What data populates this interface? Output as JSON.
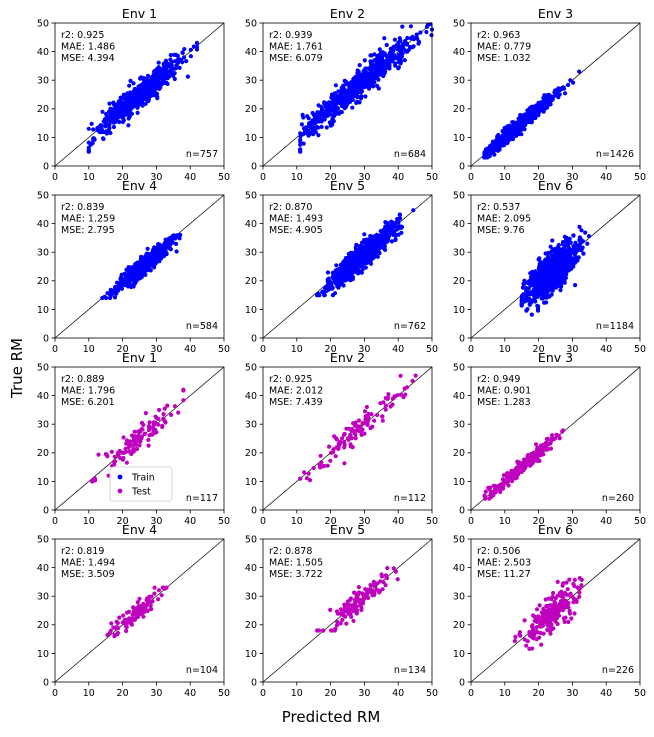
{
  "figure": {
    "xlabel": "Predicted RM",
    "ylabel": "True RM",
    "legend": {
      "placement": "lower-left",
      "subplot": 6,
      "entries": [
        "Train",
        "Test"
      ]
    },
    "colors": {
      "Train": "#0000ff",
      "Test": "#bf00bf",
      "identity_line": "#000000"
    }
  },
  "chart_data": [
    {
      "type": "scatter",
      "title": "Env 1",
      "series": "Train",
      "n_label": "n=757",
      "stats": [
        "r2: 0.925",
        "MAE: 1.486",
        "MSE: 4.394"
      ],
      "xlim": [
        0,
        50
      ],
      "ylim": [
        0,
        50
      ],
      "ticks": [
        0,
        10,
        20,
        30,
        40,
        50
      ],
      "center": [
        25,
        25
      ],
      "spread": [
        6,
        6
      ],
      "noise": 2.1,
      "n": 757,
      "color": "#0000ff",
      "xr": [
        10,
        42
      ],
      "yr": [
        5,
        43
      ]
    },
    {
      "type": "scatter",
      "title": "Env 2",
      "series": "Train",
      "n_label": "n=684",
      "stats": [
        "r2: 0.939",
        "MAE: 1.761",
        "MSE: 6.079"
      ],
      "xlim": [
        0,
        50
      ],
      "ylim": [
        0,
        50
      ],
      "ticks": [
        0,
        10,
        20,
        30,
        40,
        50
      ],
      "center": [
        28,
        28
      ],
      "spread": [
        8,
        8
      ],
      "noise": 2.4,
      "n": 684,
      "color": "#0000ff",
      "xr": [
        11,
        50
      ],
      "yr": [
        5,
        50
      ]
    },
    {
      "type": "scatter",
      "title": "Env 3",
      "series": "Train",
      "n_label": "n=1426",
      "stats": [
        "r2: 0.963",
        "MAE: 0.779",
        "MSE: 1.032"
      ],
      "xlim": [
        0,
        50
      ],
      "ylim": [
        0,
        50
      ],
      "ticks": [
        0,
        10,
        20,
        30,
        40,
        50
      ],
      "center": [
        14,
        14
      ],
      "spread": [
        5,
        5
      ],
      "noise": 1.0,
      "n": 1426,
      "color": "#0000ff",
      "xr": [
        4,
        32
      ],
      "yr": [
        3,
        33
      ]
    },
    {
      "type": "scatter",
      "title": "Env 4",
      "series": "Train",
      "n_label": "n=584",
      "stats": [
        "r2: 0.839",
        "MAE: 1.259",
        "MSE: 2.795"
      ],
      "xlim": [
        0,
        50
      ],
      "ylim": [
        0,
        50
      ],
      "ticks": [
        0,
        10,
        20,
        30,
        40,
        50
      ],
      "center": [
        26,
        25
      ],
      "spread": [
        4,
        4
      ],
      "noise": 1.6,
      "n": 584,
      "color": "#0000ff",
      "xr": [
        14,
        37
      ],
      "yr": [
        14,
        36
      ]
    },
    {
      "type": "scatter",
      "title": "Env 5",
      "series": "Train",
      "n_label": "n=762",
      "stats": [
        "r2: 0.870",
        "MAE: 1.493",
        "MSE: 4.905"
      ],
      "xlim": [
        0,
        50
      ],
      "ylim": [
        0,
        50
      ],
      "ticks": [
        0,
        10,
        20,
        30,
        40,
        50
      ],
      "center": [
        29,
        28
      ],
      "spread": [
        5,
        5
      ],
      "noise": 2.1,
      "n": 762,
      "color": "#0000ff",
      "xr": [
        16,
        45
      ],
      "yr": [
        15,
        46
      ]
    },
    {
      "type": "scatter",
      "title": "Env 6",
      "series": "Train",
      "n_label": "n=1184",
      "stats": [
        "r2: 0.537",
        "MAE: 2.095",
        "MSE: 9.76"
      ],
      "xlim": [
        0,
        50
      ],
      "ylim": [
        0,
        50
      ],
      "ticks": [
        0,
        10,
        20,
        30,
        40,
        50
      ],
      "center": [
        24,
        23
      ],
      "spread": [
        3.5,
        4
      ],
      "noise": 3.0,
      "n": 1184,
      "color": "#0000ff",
      "xr": [
        15,
        36
      ],
      "yr": [
        5,
        50
      ]
    },
    {
      "type": "scatter",
      "title": "Env 1",
      "series": "Test",
      "n_label": "n=117",
      "stats": [
        "r2: 0.889",
        "MAE: 1.796",
        "MSE: 6.201"
      ],
      "xlim": [
        0,
        50
      ],
      "ylim": [
        0,
        50
      ],
      "ticks": [
        0,
        10,
        20,
        30,
        40,
        50
      ],
      "center": [
        24,
        24
      ],
      "spread": [
        6,
        6
      ],
      "noise": 2.3,
      "n": 117,
      "color": "#bf00bf",
      "xr": [
        11,
        38
      ],
      "yr": [
        10,
        42
      ]
    },
    {
      "type": "scatter",
      "title": "Env 2",
      "series": "Test",
      "n_label": "n=112",
      "stats": [
        "r2: 0.925",
        "MAE: 2.012",
        "MSE: 7.439"
      ],
      "xlim": [
        0,
        50
      ],
      "ylim": [
        0,
        50
      ],
      "ticks": [
        0,
        10,
        20,
        30,
        40,
        50
      ],
      "center": [
        27,
        27
      ],
      "spread": [
        7,
        7
      ],
      "noise": 2.6,
      "n": 112,
      "color": "#bf00bf",
      "xr": [
        11,
        46
      ],
      "yr": [
        1,
        47
      ]
    },
    {
      "type": "scatter",
      "title": "Env 3",
      "series": "Test",
      "n_label": "n=260",
      "stats": [
        "r2: 0.949",
        "MAE: 0.901",
        "MSE: 1.283"
      ],
      "xlim": [
        0,
        50
      ],
      "ylim": [
        0,
        50
      ],
      "ticks": [
        0,
        10,
        20,
        30,
        40,
        50
      ],
      "center": [
        15,
        15
      ],
      "spread": [
        5,
        5
      ],
      "noise": 1.1,
      "n": 260,
      "color": "#bf00bf",
      "xr": [
        4,
        30
      ],
      "yr": [
        4,
        30
      ]
    },
    {
      "type": "scatter",
      "title": "Env 4",
      "series": "Test",
      "n_label": "n=104",
      "stats": [
        "r2: 0.819",
        "MAE: 1.494",
        "MSE: 3.509"
      ],
      "xlim": [
        0,
        50
      ],
      "ylim": [
        0,
        50
      ],
      "ticks": [
        0,
        10,
        20,
        30,
        40,
        50
      ],
      "center": [
        24,
        24
      ],
      "spread": [
        4,
        4
      ],
      "noise": 1.7,
      "n": 104,
      "color": "#bf00bf",
      "xr": [
        12,
        33
      ],
      "yr": [
        16,
        33
      ]
    },
    {
      "type": "scatter",
      "title": "Env 5",
      "series": "Test",
      "n_label": "n=134",
      "stats": [
        "r2: 0.878",
        "MAE: 1.505",
        "MSE: 3.722"
      ],
      "xlim": [
        0,
        50
      ],
      "ylim": [
        0,
        50
      ],
      "ticks": [
        0,
        10,
        20,
        30,
        40,
        50
      ],
      "center": [
        28,
        28
      ],
      "spread": [
        5,
        5
      ],
      "noise": 1.8,
      "n": 134,
      "color": "#bf00bf",
      "xr": [
        16,
        44
      ],
      "yr": [
        18,
        42
      ]
    },
    {
      "type": "scatter",
      "title": "Env 6",
      "series": "Test",
      "n_label": "n=226",
      "stats": [
        "r2: 0.506",
        "MAE: 2.503",
        "MSE: 11.27"
      ],
      "xlim": [
        0,
        50
      ],
      "ylim": [
        0,
        50
      ],
      "ticks": [
        0,
        10,
        20,
        30,
        40,
        50
      ],
      "center": [
        24,
        24
      ],
      "spread": [
        4,
        4
      ],
      "noise": 3.3,
      "n": 226,
      "color": "#bf00bf",
      "xr": [
        13,
        39
      ],
      "yr": [
        10,
        38
      ]
    }
  ]
}
